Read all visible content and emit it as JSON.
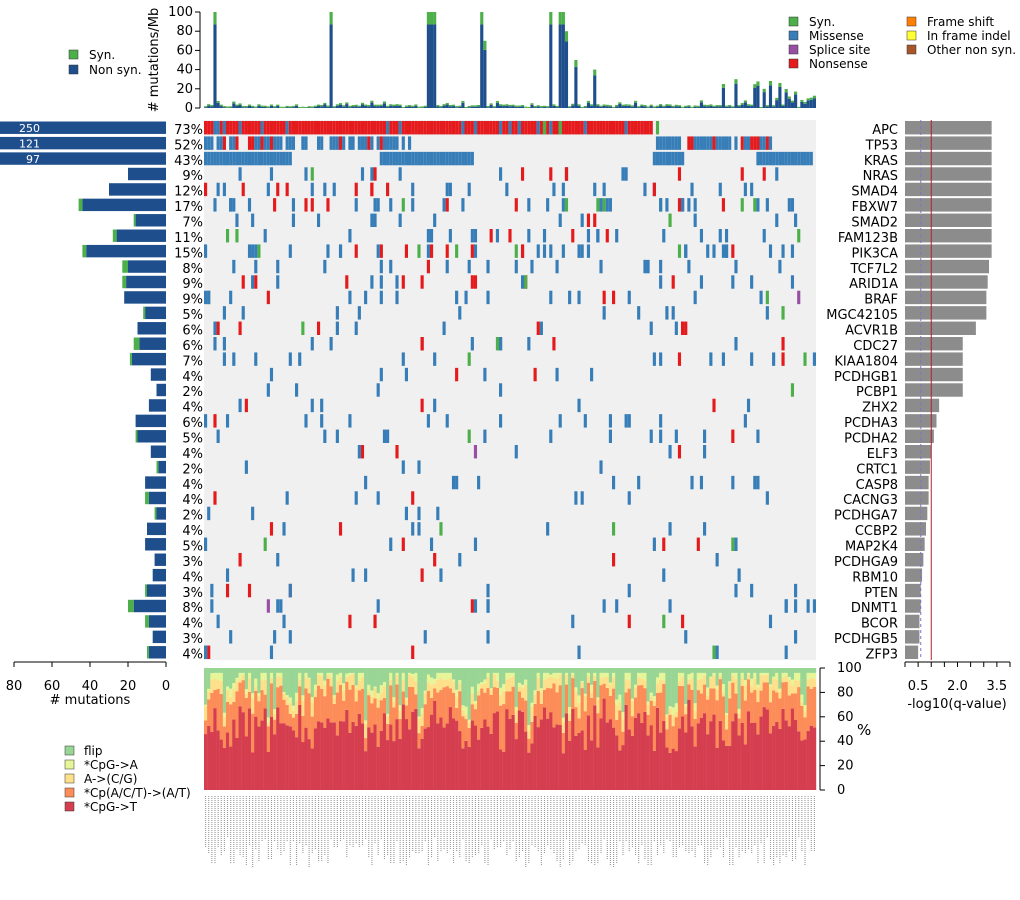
{
  "chart_data": {
    "type": "oncoplot",
    "n_samples": 195,
    "genes": [
      {
        "name": "APC",
        "pct": "73%",
        "count": 250,
        "syn": 0,
        "q": 3.3
      },
      {
        "name": "TP53",
        "pct": "52%",
        "count": 121,
        "syn": 0,
        "q": 3.3
      },
      {
        "name": "KRAS",
        "pct": "43%",
        "count": 97,
        "syn": 0,
        "q": 3.3
      },
      {
        "name": "NRAS",
        "pct": "9%",
        "count": 20,
        "syn": 0,
        "q": 3.3
      },
      {
        "name": "SMAD4",
        "pct": "12%",
        "count": 30,
        "syn": 0,
        "q": 3.3
      },
      {
        "name": "FBXW7",
        "pct": "17%",
        "count": 44,
        "syn": 2,
        "q": 3.3
      },
      {
        "name": "SMAD2",
        "pct": "7%",
        "count": 16,
        "syn": 1,
        "q": 3.3
      },
      {
        "name": "FAM123B",
        "pct": "11%",
        "count": 26,
        "syn": 2,
        "q": 3.3
      },
      {
        "name": "PIK3CA",
        "pct": "15%",
        "count": 42,
        "syn": 2,
        "q": 3.3
      },
      {
        "name": "TCF7L2",
        "pct": "8%",
        "count": 20,
        "syn": 3,
        "q": 3.2
      },
      {
        "name": "ARID1A",
        "pct": "9%",
        "count": 21,
        "syn": 2,
        "q": 3.15
      },
      {
        "name": "BRAF",
        "pct": "9%",
        "count": 22,
        "syn": 0,
        "q": 3.1
      },
      {
        "name": "MGC42105",
        "pct": "5%",
        "count": 11,
        "syn": 1,
        "q": 3.1
      },
      {
        "name": "ACVR1B",
        "pct": "6%",
        "count": 15,
        "syn": 0,
        "q": 2.7
      },
      {
        "name": "CDC27",
        "pct": "6%",
        "count": 14,
        "syn": 3,
        "q": 2.2
      },
      {
        "name": "KIAA1804",
        "pct": "7%",
        "count": 18,
        "syn": 1,
        "q": 2.2
      },
      {
        "name": "PCDHGB1",
        "pct": "4%",
        "count": 8,
        "syn": 0,
        "q": 2.2
      },
      {
        "name": "PCBP1",
        "pct": "2%",
        "count": 5,
        "syn": 0,
        "q": 2.2
      },
      {
        "name": "ZHX2",
        "pct": "4%",
        "count": 9,
        "syn": 0,
        "q": 1.3
      },
      {
        "name": "PCDHA3",
        "pct": "6%",
        "count": 16,
        "syn": 0,
        "q": 1.2
      },
      {
        "name": "PCDHA2",
        "pct": "5%",
        "count": 15,
        "syn": 1,
        "q": 1.1
      },
      {
        "name": "ELF3",
        "pct": "4%",
        "count": 8,
        "syn": 0,
        "q": 1.0
      },
      {
        "name": "CRTC1",
        "pct": "2%",
        "count": 4,
        "syn": 1,
        "q": 0.95
      },
      {
        "name": "CASP8",
        "pct": "4%",
        "count": 11,
        "syn": 0,
        "q": 0.9
      },
      {
        "name": "CACNG3",
        "pct": "4%",
        "count": 9,
        "syn": 2,
        "q": 0.9
      },
      {
        "name": "PCDHGA7",
        "pct": "2%",
        "count": 5,
        "syn": 1,
        "q": 0.85
      },
      {
        "name": "CCBP2",
        "pct": "4%",
        "count": 10,
        "syn": 0,
        "q": 0.8
      },
      {
        "name": "MAP2K4",
        "pct": "5%",
        "count": 11,
        "syn": 0,
        "q": 0.75
      },
      {
        "name": "PCDHGA9",
        "pct": "3%",
        "count": 6,
        "syn": 0,
        "q": 0.7
      },
      {
        "name": "RBM10",
        "pct": "4%",
        "count": 7,
        "syn": 0,
        "q": 0.65
      },
      {
        "name": "PTEN",
        "pct": "3%",
        "count": 10,
        "syn": 1,
        "q": 0.6
      },
      {
        "name": "DNMT1",
        "pct": "8%",
        "count": 17,
        "syn": 3,
        "q": 0.6
      },
      {
        "name": "BCOR",
        "pct": "4%",
        "count": 9,
        "syn": 2,
        "q": 0.55
      },
      {
        "name": "PCDHGB5",
        "pct": "3%",
        "count": 7,
        "syn": 0,
        "q": 0.55
      },
      {
        "name": "ZFP3",
        "pct": "4%",
        "count": 9,
        "syn": 1,
        "q": 0.5
      }
    ],
    "count_labels": {
      "APC": "250",
      "TP53": "121",
      "KRAS": "97"
    },
    "left_axis": {
      "ticks": [
        "80",
        "60",
        "40",
        "20",
        "0"
      ],
      "label": "# mutations",
      "max": 80
    },
    "top_axis": {
      "ticks": [
        "0",
        "20",
        "40",
        "60",
        "80",
        "100"
      ],
      "label": "# mutations/Mb",
      "max": 100
    },
    "q_axis": {
      "ticks": [
        "0.5",
        "2.0",
        "3.5"
      ],
      "label": "-log10(q-value)",
      "min": 0,
      "max": 4
    },
    "spectrum_axis": {
      "ticks": [
        "0",
        "20",
        "40",
        "60",
        "80",
        "100"
      ],
      "label": "%"
    },
    "legend_burden": [
      "Syn.",
      "Non syn."
    ],
    "legend_types": [
      {
        "label": "Syn.",
        "color": "#4daf4a"
      },
      {
        "label": "Missense",
        "color": "#377eb8"
      },
      {
        "label": "Splice site",
        "color": "#984ea3"
      },
      {
        "label": "Nonsense",
        "color": "#e41a1c"
      },
      {
        "label": "Frame shift",
        "color": "#ff7f00"
      },
      {
        "label": "In frame indel",
        "color": "#ffff33"
      },
      {
        "label": "Other non syn.",
        "color": "#a65628"
      }
    ],
    "legend_spectrum": [
      {
        "label": "flip",
        "color": "#99d594"
      },
      {
        "label": "*CpG->A",
        "color": "#e6f598"
      },
      {
        "label": "A->(C/G)",
        "color": "#fee08b"
      },
      {
        "label": "*Cp(A/C/T)->(A/T)",
        "color": "#fc8d59"
      },
      {
        "label": "*CpG->T",
        "color": "#d53e4f"
      }
    ],
    "colors": {
      "background": "#f0f0f0",
      "nonsyn": "#1f4e8c",
      "syn": "#4daf4a",
      "missense": "#377eb8",
      "nonsense": "#e41a1c",
      "splice": "#984ea3",
      "qbar": "#8c8c8c",
      "threshold": "#b22222",
      "sample_label": "#999999"
    }
  }
}
